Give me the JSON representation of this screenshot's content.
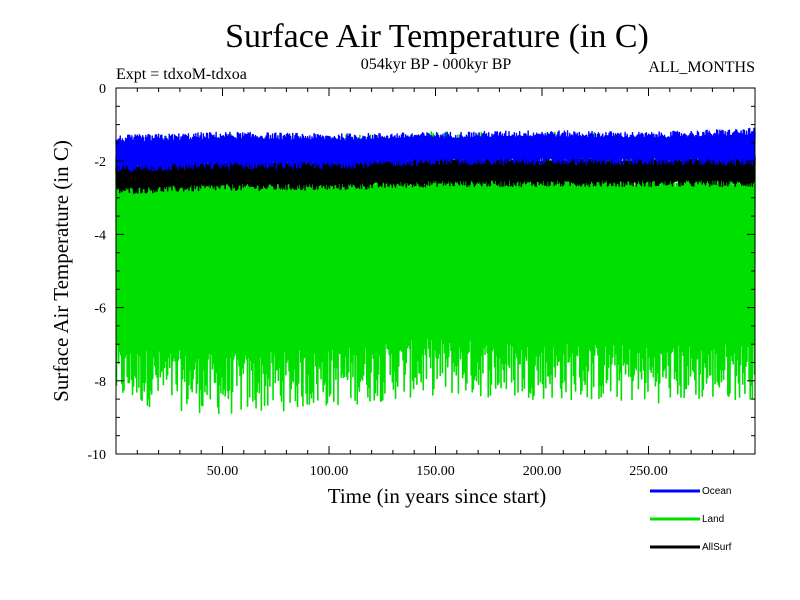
{
  "chart_data": {
    "type": "line",
    "title": "Surface Air Temperature (in C)",
    "subtitle_left": "Expt = tdxoM-tdxoa",
    "subtitle_center": "054kyr BP - 000kyr BP",
    "subtitle_right": "ALL_MONTHS",
    "xlabel": "Time (in years since start)",
    "ylabel": "Surface Air Temperature (in C)",
    "xlim": [
      0,
      300
    ],
    "ylim": [
      -10,
      0
    ],
    "xticks": [
      50,
      100,
      150,
      200,
      250
    ],
    "xtick_labels": [
      "50.00",
      "100.00",
      "150.00",
      "200.00",
      "250.00"
    ],
    "yticks": [
      0,
      -2,
      -4,
      -6,
      -8,
      -10
    ],
    "ytick_labels": [
      "0",
      "-2",
      "-4",
      "-6",
      "-8",
      "-10"
    ],
    "grid": false,
    "legend_position": "bottom-right, outside plot",
    "series": [
      {
        "name": "Land",
        "color": "#00e000",
        "style": "monthly oscillation band",
        "x": [
          0,
          50,
          100,
          150,
          200,
          250,
          300
        ],
        "y_max": [
          -2.1,
          -2.0,
          -2.0,
          -1.9,
          -1.9,
          -2.0,
          -2.0
        ],
        "y_min": [
          -7.8,
          -8.1,
          -7.9,
          -7.6,
          -7.7,
          -7.8,
          -7.7
        ]
      },
      {
        "name": "AllSurf",
        "color": "#000000",
        "style": "monthly oscillation band",
        "x": [
          0,
          50,
          100,
          150,
          200,
          250,
          300
        ],
        "y_max": [
          -2.1,
          -2.0,
          -2.0,
          -1.95,
          -1.95,
          -1.95,
          -1.9
        ],
        "y_min": [
          -2.8,
          -2.7,
          -2.7,
          -2.6,
          -2.6,
          -2.6,
          -2.6
        ]
      },
      {
        "name": "Ocean",
        "color": "#0000ff",
        "style": "monthly oscillation band",
        "x": [
          0,
          50,
          100,
          150,
          200,
          250,
          300
        ],
        "y_max": [
          -1.4,
          -1.3,
          -1.35,
          -1.3,
          -1.25,
          -1.3,
          -1.2
        ],
        "y_min": [
          -2.2,
          -2.1,
          -2.1,
          -2.0,
          -2.0,
          -2.0,
          -2.0
        ]
      }
    ]
  }
}
